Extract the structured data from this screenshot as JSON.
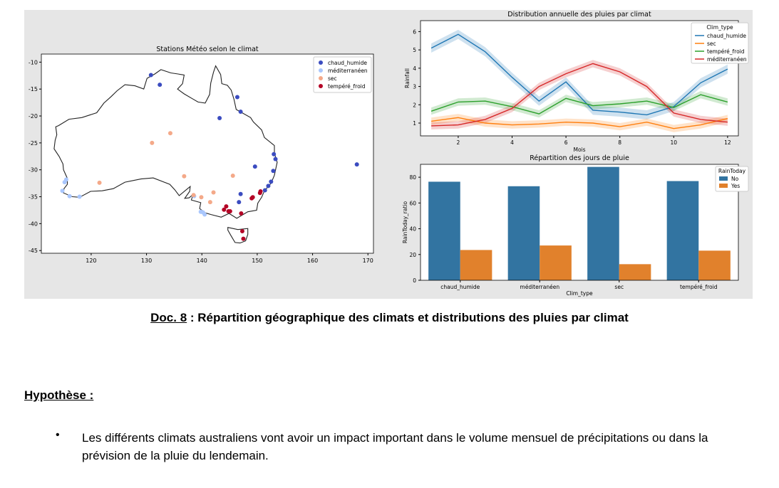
{
  "chart_data": [
    {
      "type": "scatter",
      "title": "Stations Météo selon le climat",
      "xlabel": "",
      "ylabel": "",
      "xlim": [
        111,
        171
      ],
      "ylim": [
        -45.5,
        -8.5
      ],
      "xticks": [
        120,
        130,
        140,
        150,
        160,
        170
      ],
      "yticks": [
        -10,
        -15,
        -20,
        -25,
        -30,
        -35,
        -40,
        -45
      ],
      "legend_placement": "top-right",
      "grid": false,
      "series": [
        {
          "name": "chaud_humide",
          "color": "#3b4cc0",
          "points": [
            [
              130.8,
              -12.4
            ],
            [
              132.4,
              -14.2
            ],
            [
              146.4,
              -16.5
            ],
            [
              147.0,
              -19.2
            ],
            [
              143.2,
              -20.4
            ],
            [
              153.0,
              -27.1
            ],
            [
              153.3,
              -28.0
            ],
            [
              152.9,
              -30.2
            ],
            [
              149.6,
              -29.4
            ],
            [
              152.5,
              -32.2
            ],
            [
              152.0,
              -33.0
            ],
            [
              151.4,
              -33.8
            ],
            [
              147.0,
              -34.5
            ],
            [
              146.7,
              -36.0
            ],
            [
              168.0,
              -29.0
            ]
          ]
        },
        {
          "name": "méditerranéen",
          "color": "#aac7fd",
          "points": [
            [
              115.5,
              -31.8
            ],
            [
              115.2,
              -32.3
            ],
            [
              114.8,
              -33.9
            ],
            [
              116.1,
              -34.9
            ],
            [
              117.9,
              -35.0
            ],
            [
              138.6,
              -34.9
            ],
            [
              139.8,
              -37.8
            ],
            [
              140.5,
              -38.3
            ],
            [
              140.2,
              -37.9
            ]
          ]
        },
        {
          "name": "sec",
          "color": "#f4a989",
          "points": [
            [
              131.0,
              -25.0
            ],
            [
              134.3,
              -23.2
            ],
            [
              121.5,
              -32.4
            ],
            [
              136.8,
              -31.2
            ],
            [
              138.5,
              -34.7
            ],
            [
              139.9,
              -35.1
            ],
            [
              142.1,
              -34.2
            ],
            [
              141.5,
              -36.0
            ],
            [
              145.6,
              -31.1
            ]
          ]
        },
        {
          "name": "tempéré_froid",
          "color": "#b40426",
          "points": [
            [
              144.0,
              -37.4
            ],
            [
              144.4,
              -36.8
            ],
            [
              144.8,
              -37.7
            ],
            [
              145.1,
              -37.7
            ],
            [
              147.1,
              -38.1
            ],
            [
              149.0,
              -35.3
            ],
            [
              149.2,
              -35.1
            ],
            [
              150.5,
              -34.3
            ],
            [
              150.6,
              -34.0
            ],
            [
              147.3,
              -41.4
            ],
            [
              147.5,
              -42.8
            ]
          ]
        }
      ]
    },
    {
      "type": "line",
      "title": "Distribution annuelle des pluies par climat",
      "xlabel": "Mois",
      "ylabel": "Rainfall",
      "xlim": [
        0.6,
        12.4
      ],
      "ylim": [
        0.3,
        6.6
      ],
      "xticks": [
        2,
        4,
        6,
        8,
        10,
        12
      ],
      "yticks": [
        1,
        2,
        3,
        4,
        5,
        6
      ],
      "x": [
        1,
        2,
        3,
        4,
        5,
        6,
        7,
        8,
        9,
        10,
        11,
        12
      ],
      "legend_title": "Clim_type",
      "legend_placement": "top-right",
      "grid": false,
      "series": [
        {
          "name": "chaud_humide",
          "color": "#1f77b4",
          "values": [
            5.1,
            5.85,
            4.9,
            3.5,
            2.2,
            3.25,
            1.7,
            1.6,
            1.45,
            1.9,
            3.2,
            3.95
          ],
          "ci": 0.25
        },
        {
          "name": "sec",
          "color": "#ff7f0e",
          "values": [
            1.1,
            1.3,
            1.0,
            0.9,
            0.95,
            1.05,
            1.0,
            0.8,
            1.05,
            0.7,
            0.9,
            1.25
          ],
          "ci": 0.2
        },
        {
          "name": "tempéré_froid",
          "color": "#2ca02c",
          "values": [
            1.65,
            2.15,
            2.2,
            1.9,
            1.5,
            2.35,
            1.95,
            2.05,
            2.2,
            1.85,
            2.55,
            2.15
          ],
          "ci": 0.2
        },
        {
          "name": "méditerranéen",
          "color": "#d62728",
          "values": [
            0.85,
            0.9,
            1.2,
            1.8,
            3.0,
            3.7,
            4.25,
            3.8,
            3.0,
            1.55,
            1.2,
            1.05
          ],
          "ci": 0.2
        }
      ]
    },
    {
      "type": "bar",
      "title": "Répartition des jours de pluie",
      "xlabel": "Clim_type",
      "ylabel": "RainToday_ratio",
      "ylim": [
        0,
        90
      ],
      "yticks": [
        0,
        20,
        40,
        60,
        80
      ],
      "categories": [
        "chaud_humide",
        "méditerranéen",
        "sec",
        "tempéré_froid"
      ],
      "legend_title": "RainToday",
      "legend_placement": "top-right",
      "grid": false,
      "series": [
        {
          "name": "No",
          "color": "#3274a1",
          "values": [
            76.5,
            73,
            88,
            77
          ]
        },
        {
          "name": "Yes",
          "color": "#e1812c",
          "values": [
            23.5,
            27,
            12.5,
            23
          ]
        }
      ]
    }
  ],
  "caption": {
    "doc_ref": "Doc. 8",
    "text": " : Répartition géographique des climats et distributions des pluies par climat"
  },
  "hypothesis": {
    "heading": "Hypothèse :",
    "bullet": "•",
    "items": [
      "Les différents climats australiens vont avoir un impact important dans le volume mensuel de précipitations ou dans la prévision de la pluie du lendemain."
    ]
  }
}
